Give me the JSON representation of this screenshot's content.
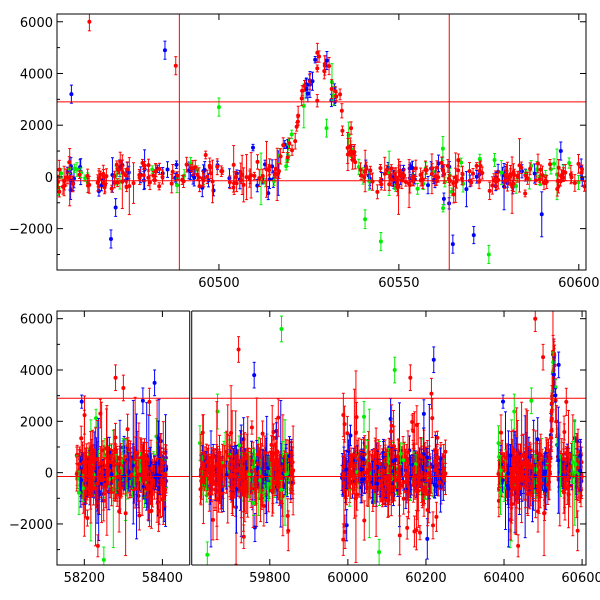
{
  "colors": {
    "red": "#ff0000",
    "green": "#00ee00",
    "blue": "#0000ff",
    "frame": "#000000",
    "background": "#ffffff"
  },
  "chart_data": [
    {
      "type": "scatter",
      "panel": "top",
      "xlim": [
        60455,
        60602
      ],
      "ylim": [
        -3600,
        6300
      ],
      "x_ticks": [
        60500,
        60550,
        60600
      ],
      "y_ticks": [
        -2000,
        0,
        2000,
        4000,
        6000
      ],
      "x_tick_labels": [
        "60500",
        "60550",
        "60600"
      ],
      "y_tick_labels": [
        "−2000",
        "0",
        "2000",
        "4000",
        "6000"
      ],
      "reference_lines": {
        "horizontal": [
          2900,
          -150
        ],
        "vertical": [
          60489,
          60564
        ],
        "color": "red"
      },
      "flare": {
        "peak_x": 60528,
        "peak_y": 4400,
        "width": 5,
        "baseline": 0
      },
      "series": [
        {
          "color": "blue",
          "x_range": [
            60455,
            60602
          ],
          "count": 110
        },
        {
          "color": "green",
          "x_range": [
            60455,
            60602
          ],
          "count": 70
        },
        {
          "color": "red",
          "x_range": [
            60455,
            60602
          ],
          "count": 260
        }
      ],
      "notable_points": [
        {
          "x": 60485,
          "y": 4900,
          "color": "blue"
        },
        {
          "x": 60488,
          "y": 4300,
          "color": "red"
        },
        {
          "x": 60464,
          "y": 6000,
          "color": "red"
        },
        {
          "x": 60459,
          "y": 3200,
          "color": "blue"
        },
        {
          "x": 60470,
          "y": -2400,
          "color": "blue"
        },
        {
          "x": 60526,
          "y": 3700,
          "color": "blue"
        },
        {
          "x": 60530,
          "y": 4500,
          "color": "blue"
        },
        {
          "x": 60595,
          "y": 1000,
          "color": "blue"
        },
        {
          "x": 60500,
          "y": 2700,
          "color": "green"
        },
        {
          "x": 60545,
          "y": -2500,
          "color": "green"
        },
        {
          "x": 60575,
          "y": -3000,
          "color": "green"
        },
        {
          "x": 60565,
          "y": -2600,
          "color": "blue"
        }
      ]
    },
    {
      "type": "scatter",
      "panel": "bottom",
      "xlim": [
        58130,
        60610
      ],
      "ylim": [
        -3600,
        6300
      ],
      "x_ticks": [
        58200,
        58400,
        59800,
        60000,
        60200,
        60400,
        60600
      ],
      "y_ticks": [
        -2000,
        0,
        2000,
        4000,
        6000
      ],
      "x_tick_labels": [
        "58200",
        "58400",
        "59800",
        "60000",
        "60200",
        "60400",
        "60600"
      ],
      "y_tick_labels": [
        "−2000",
        "0",
        "2000",
        "4000",
        "6000"
      ],
      "x_breaks": [
        58470,
        59600
      ],
      "reference_lines": {
        "horizontal": [
          2900,
          -150
        ],
        "color": "red"
      },
      "seasons": [
        {
          "x_range": [
            58180,
            58410
          ],
          "spread": 1200,
          "count": 420
        },
        {
          "x_range": [
            59620,
            59860
          ],
          "spread": 1200,
          "count": 420
        },
        {
          "x_range": [
            59985,
            60250
          ],
          "spread": 1200,
          "count": 460
        },
        {
          "x_range": [
            60385,
            60600
          ],
          "spread": 1200,
          "count": 380
        }
      ],
      "flare": {
        "peak_x": 60528,
        "peak_y": 4400,
        "width": 5,
        "baseline": 0
      },
      "notable_points": [
        {
          "x": 58280,
          "y": 3700,
          "color": "red"
        },
        {
          "x": 58300,
          "y": 3300,
          "color": "red"
        },
        {
          "x": 58350,
          "y": 2800,
          "color": "blue"
        },
        {
          "x": 58380,
          "y": 3500,
          "color": "blue"
        },
        {
          "x": 59720,
          "y": 4800,
          "color": "red"
        },
        {
          "x": 59760,
          "y": 3800,
          "color": "blue"
        },
        {
          "x": 59830,
          "y": 5600,
          "color": "green"
        },
        {
          "x": 60120,
          "y": 4000,
          "color": "green"
        },
        {
          "x": 60160,
          "y": 3700,
          "color": "red"
        },
        {
          "x": 60220,
          "y": 4400,
          "color": "blue"
        },
        {
          "x": 60480,
          "y": 6000,
          "color": "red"
        },
        {
          "x": 60500,
          "y": 4500,
          "color": "red"
        },
        {
          "x": 60540,
          "y": 4200,
          "color": "blue"
        },
        {
          "x": 60470,
          "y": 2800,
          "color": "green"
        },
        {
          "x": 58250,
          "y": -3400,
          "color": "green"
        },
        {
          "x": 59640,
          "y": -3200,
          "color": "green"
        },
        {
          "x": 60080,
          "y": -3100,
          "color": "green"
        }
      ]
    }
  ]
}
